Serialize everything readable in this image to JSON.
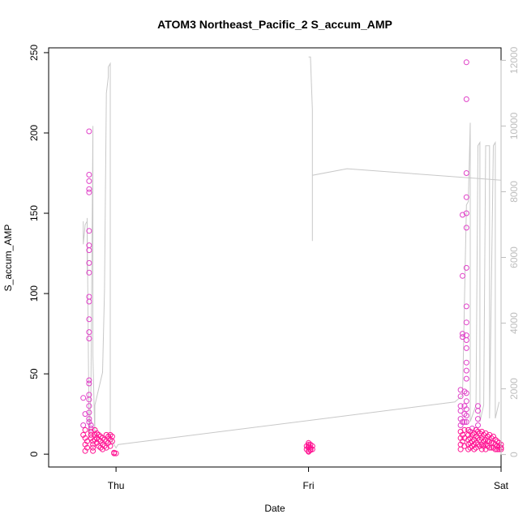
{
  "chart_data": {
    "type": "scatter",
    "title": "ATOM3 Northeast_Pacific_2 S_accum_AMP",
    "xlabel": "Date",
    "ylabel": "S_accum_AMP",
    "x_ticks": [
      "Thu",
      "Fri",
      "Sat"
    ],
    "xlim": [
      -0.35,
      2.0
    ],
    "y_left": {
      "ticks": [
        0,
        50,
        100,
        150,
        200,
        250
      ],
      "ylim": [
        -8,
        253
      ]
    },
    "y_right": {
      "ticks": [
        0,
        2000,
        4000,
        6000,
        8000,
        10000,
        12000
      ],
      "ylim": [
        -380,
        12380
      ],
      "color": "#bdbdbd"
    },
    "series": [
      {
        "axis": "left",
        "marker": "open-circle",
        "color_near_zero": "#ff1493",
        "color_high": "#e040c8",
        "points": [
          [
            -0.17,
            35
          ],
          [
            -0.16,
            25
          ],
          [
            -0.17,
            18
          ],
          [
            -0.16,
            15
          ],
          [
            -0.17,
            12
          ],
          [
            -0.16,
            10
          ],
          [
            -0.15,
            8
          ],
          [
            -0.16,
            6
          ],
          [
            -0.15,
            4
          ],
          [
            -0.16,
            2
          ],
          [
            -0.14,
            201
          ],
          [
            -0.14,
            174
          ],
          [
            -0.14,
            170
          ],
          [
            -0.14,
            165
          ],
          [
            -0.14,
            163
          ],
          [
            -0.14,
            139
          ],
          [
            -0.14,
            130
          ],
          [
            -0.14,
            127
          ],
          [
            -0.14,
            119
          ],
          [
            -0.14,
            113
          ],
          [
            -0.14,
            98
          ],
          [
            -0.14,
            95
          ],
          [
            -0.14,
            84
          ],
          [
            -0.14,
            76
          ],
          [
            -0.14,
            72
          ],
          [
            -0.14,
            46
          ],
          [
            -0.14,
            44
          ],
          [
            -0.14,
            37
          ],
          [
            -0.14,
            34
          ],
          [
            -0.14,
            30
          ],
          [
            -0.14,
            26
          ],
          [
            -0.14,
            22
          ],
          [
            -0.14,
            20
          ],
          [
            -0.13,
            18
          ],
          [
            -0.13,
            16
          ],
          [
            -0.13,
            14
          ],
          [
            -0.13,
            12
          ],
          [
            -0.13,
            10
          ],
          [
            -0.12,
            8
          ],
          [
            -0.12,
            6
          ],
          [
            -0.12,
            4
          ],
          [
            -0.12,
            2
          ],
          [
            -0.11,
            15
          ],
          [
            -0.11,
            12
          ],
          [
            -0.11,
            9
          ],
          [
            -0.1,
            13
          ],
          [
            -0.1,
            10
          ],
          [
            -0.1,
            7
          ],
          [
            -0.09,
            12
          ],
          [
            -0.09,
            9
          ],
          [
            -0.09,
            5
          ],
          [
            -0.08,
            11
          ],
          [
            -0.08,
            8
          ],
          [
            -0.08,
            4
          ],
          [
            -0.07,
            10
          ],
          [
            -0.07,
            6
          ],
          [
            -0.07,
            3
          ],
          [
            -0.06,
            9
          ],
          [
            -0.06,
            5
          ],
          [
            -0.05,
            12
          ],
          [
            -0.05,
            8
          ],
          [
            -0.05,
            4
          ],
          [
            -0.04,
            11
          ],
          [
            -0.04,
            7
          ],
          [
            -0.03,
            12
          ],
          [
            -0.03,
            9
          ],
          [
            -0.03,
            5
          ],
          [
            -0.02,
            11
          ],
          [
            -0.02,
            8
          ],
          [
            -0.01,
            0.5
          ],
          [
            -0.01,
            1
          ],
          [
            0.0,
            0.5
          ],
          [
            1.0,
            7
          ],
          [
            1.0,
            6
          ],
          [
            1.0,
            5
          ],
          [
            1.01,
            4
          ],
          [
            1.01,
            3
          ],
          [
            1.01,
            2.5
          ],
          [
            1.0,
            2
          ],
          [
            1.0,
            1.5
          ],
          [
            1.02,
            5
          ],
          [
            1.02,
            3
          ],
          [
            1.0,
            4
          ],
          [
            1.01,
            6
          ],
          [
            0.99,
            3
          ],
          [
            0.99,
            5
          ],
          [
            1.79,
            40
          ],
          [
            1.79,
            36
          ],
          [
            1.79,
            30
          ],
          [
            1.79,
            27
          ],
          [
            1.79,
            22
          ],
          [
            1.79,
            18
          ],
          [
            1.79,
            14
          ],
          [
            1.79,
            10
          ],
          [
            1.79,
            6
          ],
          [
            1.79,
            3
          ],
          [
            1.8,
            149
          ],
          [
            1.8,
            111
          ],
          [
            1.8,
            75
          ],
          [
            1.8,
            73
          ],
          [
            1.8,
            20
          ],
          [
            1.8,
            12
          ],
          [
            1.8,
            8
          ],
          [
            1.81,
            39
          ],
          [
            1.81,
            30
          ],
          [
            1.81,
            25
          ],
          [
            1.81,
            20
          ],
          [
            1.81,
            15
          ],
          [
            1.81,
            10
          ],
          [
            1.81,
            5
          ],
          [
            1.82,
            244
          ],
          [
            1.82,
            221
          ],
          [
            1.82,
            175
          ],
          [
            1.82,
            160
          ],
          [
            1.82,
            150
          ],
          [
            1.82,
            141
          ],
          [
            1.82,
            116
          ],
          [
            1.82,
            92
          ],
          [
            1.82,
            82
          ],
          [
            1.82,
            74
          ],
          [
            1.82,
            71
          ],
          [
            1.82,
            66
          ],
          [
            1.82,
            57
          ],
          [
            1.82,
            52
          ],
          [
            1.82,
            47
          ],
          [
            1.82,
            38
          ],
          [
            1.82,
            33
          ],
          [
            1.82,
            28
          ],
          [
            1.82,
            24
          ],
          [
            1.82,
            20
          ],
          [
            1.83,
            15
          ],
          [
            1.83,
            12
          ],
          [
            1.83,
            9
          ],
          [
            1.83,
            6
          ],
          [
            1.83,
            3
          ],
          [
            1.84,
            14
          ],
          [
            1.84,
            10
          ],
          [
            1.84,
            7
          ],
          [
            1.84,
            4
          ],
          [
            1.85,
            16
          ],
          [
            1.85,
            12
          ],
          [
            1.85,
            8
          ],
          [
            1.85,
            5
          ],
          [
            1.86,
            13
          ],
          [
            1.86,
            9
          ],
          [
            1.86,
            6
          ],
          [
            1.86,
            3
          ],
          [
            1.87,
            15
          ],
          [
            1.87,
            11
          ],
          [
            1.87,
            7
          ],
          [
            1.87,
            4
          ],
          [
            1.88,
            30
          ],
          [
            1.88,
            27
          ],
          [
            1.88,
            22
          ],
          [
            1.88,
            18
          ],
          [
            1.88,
            14
          ],
          [
            1.88,
            10
          ],
          [
            1.88,
            6
          ],
          [
            1.89,
            13
          ],
          [
            1.89,
            9
          ],
          [
            1.89,
            5
          ],
          [
            1.9,
            14
          ],
          [
            1.9,
            10
          ],
          [
            1.9,
            6
          ],
          [
            1.9,
            3
          ],
          [
            1.91,
            12
          ],
          [
            1.91,
            8
          ],
          [
            1.91,
            5
          ],
          [
            1.92,
            13
          ],
          [
            1.92,
            9
          ],
          [
            1.92,
            6
          ],
          [
            1.92,
            3
          ],
          [
            1.93,
            11
          ],
          [
            1.93,
            8
          ],
          [
            1.93,
            5
          ],
          [
            1.94,
            12
          ],
          [
            1.94,
            8
          ],
          [
            1.94,
            4
          ],
          [
            1.95,
            10
          ],
          [
            1.95,
            7
          ],
          [
            1.95,
            4
          ],
          [
            1.96,
            11
          ],
          [
            1.96,
            7
          ],
          [
            1.96,
            4
          ],
          [
            1.97,
            9
          ],
          [
            1.97,
            6
          ],
          [
            1.97,
            3
          ],
          [
            1.98,
            8
          ],
          [
            1.98,
            5
          ],
          [
            1.98,
            3
          ],
          [
            1.99,
            7
          ],
          [
            1.99,
            5
          ],
          [
            1.99,
            3
          ],
          [
            2.0,
            6
          ],
          [
            2.0,
            4
          ],
          [
            2.0,
            3
          ]
        ]
      },
      {
        "axis": "right",
        "type": "line",
        "color": "#c8c8c8",
        "points": [
          [
            -0.17,
            7100
          ],
          [
            -0.17,
            6400
          ],
          [
            -0.16,
            7000
          ],
          [
            -0.15,
            7100
          ],
          [
            -0.15,
            5500
          ],
          [
            -0.15,
            7200
          ],
          [
            -0.14,
            500
          ],
          [
            -0.13,
            2000
          ],
          [
            -0.13,
            2200
          ],
          [
            -0.12,
            10000
          ],
          [
            -0.12,
            3000
          ],
          [
            -0.11,
            500
          ],
          [
            -0.11,
            1500
          ],
          [
            -0.07,
            2500
          ],
          [
            -0.06,
            5000
          ],
          [
            -0.05,
            11000
          ],
          [
            -0.04,
            11500
          ],
          [
            -0.04,
            11800
          ],
          [
            -0.03,
            11900
          ],
          [
            -0.03,
            500
          ],
          [
            0.0,
            200
          ],
          [
            0.01,
            300
          ],
          [
            1.76,
            1600
          ],
          [
            1.8,
            1800
          ],
          [
            1.82,
            7600
          ],
          [
            1.83,
            7700
          ],
          [
            1.84,
            10100
          ],
          [
            1.84,
            1000
          ],
          [
            1.87,
            1500
          ],
          [
            1.88,
            9400
          ],
          [
            1.89,
            9500
          ],
          [
            1.89,
            1000
          ],
          [
            1.91,
            1500
          ],
          [
            1.92,
            9400
          ],
          [
            1.94,
            9400
          ],
          [
            1.94,
            1100
          ],
          [
            1.96,
            9400
          ],
          [
            1.97,
            9500
          ],
          [
            1.97,
            1100
          ],
          [
            1.99,
            1600
          ]
        ]
      },
      {
        "axis": "right",
        "type": "line",
        "color": "#c8c8c8",
        "points": [
          [
            1.0,
            12100
          ],
          [
            1.01,
            12100
          ],
          [
            1.02,
            10500
          ],
          [
            1.02,
            6500
          ],
          [
            1.02,
            8500
          ],
          [
            1.2,
            8700
          ],
          [
            2.0,
            8350
          ]
        ]
      }
    ]
  }
}
